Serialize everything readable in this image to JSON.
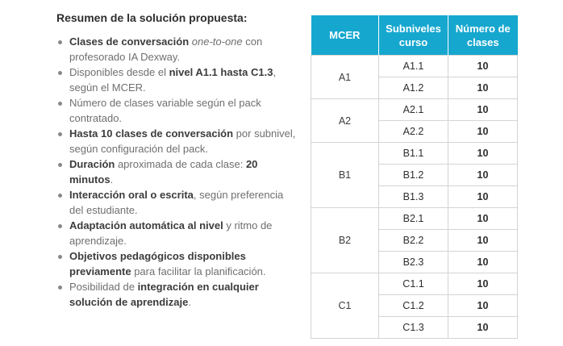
{
  "summary": {
    "heading": "Resumen de la solución propuesta:",
    "items": [
      [
        {
          "t": "Clases de conversación",
          "s": "b"
        },
        {
          "t": " ",
          "s": ""
        },
        {
          "t": "one-to-one",
          "s": "i"
        },
        {
          "t": " con profesorado IA Dexway.",
          "s": ""
        }
      ],
      [
        {
          "t": "Disponibles desde el ",
          "s": ""
        },
        {
          "t": "nivel A1.1 hasta C1.3",
          "s": "b"
        },
        {
          "t": ", según el MCER.",
          "s": ""
        }
      ],
      [
        {
          "t": "Número de clases variable según el pack contratado.",
          "s": ""
        }
      ],
      [
        {
          "t": "Hasta 10 clases de conversación",
          "s": "b"
        },
        {
          "t": " por subnivel, según configuración del pack.",
          "s": ""
        }
      ],
      [
        {
          "t": "Duración",
          "s": "b"
        },
        {
          "t": " aproximada de cada clase: ",
          "s": ""
        },
        {
          "t": "20 minutos",
          "s": "b"
        },
        {
          "t": ".",
          "s": ""
        }
      ],
      [
        {
          "t": "Interacción oral o escrita",
          "s": "b"
        },
        {
          "t": ", según preferencia del estudiante.",
          "s": ""
        }
      ],
      [
        {
          "t": "Adaptación automática al nivel",
          "s": "b"
        },
        {
          "t": " y ritmo de aprendizaje.",
          "s": ""
        }
      ],
      [
        {
          "t": "Objetivos pedagógicos disponibles previamente",
          "s": "b"
        },
        {
          "t": " para facilitar la planificación.",
          "s": ""
        }
      ],
      [
        {
          "t": "Posibilidad de ",
          "s": ""
        },
        {
          "t": "integración en cualquier solución de aprendizaje",
          "s": "b"
        },
        {
          "t": ".",
          "s": ""
        }
      ]
    ]
  },
  "table": {
    "headers": [
      "MCER",
      "Subniveles curso",
      "Número de clases"
    ],
    "groups": [
      {
        "level": "A1",
        "rows": [
          {
            "sub": "A1.1",
            "count": "10"
          },
          {
            "sub": "A1.2",
            "count": "10"
          }
        ]
      },
      {
        "level": "A2",
        "rows": [
          {
            "sub": "A2.1",
            "count": "10"
          },
          {
            "sub": "A2.2",
            "count": "10"
          }
        ]
      },
      {
        "level": "B1",
        "rows": [
          {
            "sub": "B1.1",
            "count": "10"
          },
          {
            "sub": "B1.2",
            "count": "10"
          },
          {
            "sub": "B1.3",
            "count": "10"
          }
        ]
      },
      {
        "level": "B2",
        "rows": [
          {
            "sub": "B2.1",
            "count": "10"
          },
          {
            "sub": "B2.2",
            "count": "10"
          },
          {
            "sub": "B2.3",
            "count": "10"
          }
        ]
      },
      {
        "level": "C1",
        "rows": [
          {
            "sub": "C1.1",
            "count": "10"
          },
          {
            "sub": "C1.2",
            "count": "10"
          },
          {
            "sub": "C1.3",
            "count": "10"
          }
        ]
      }
    ],
    "header_color": "#16a7cf"
  }
}
